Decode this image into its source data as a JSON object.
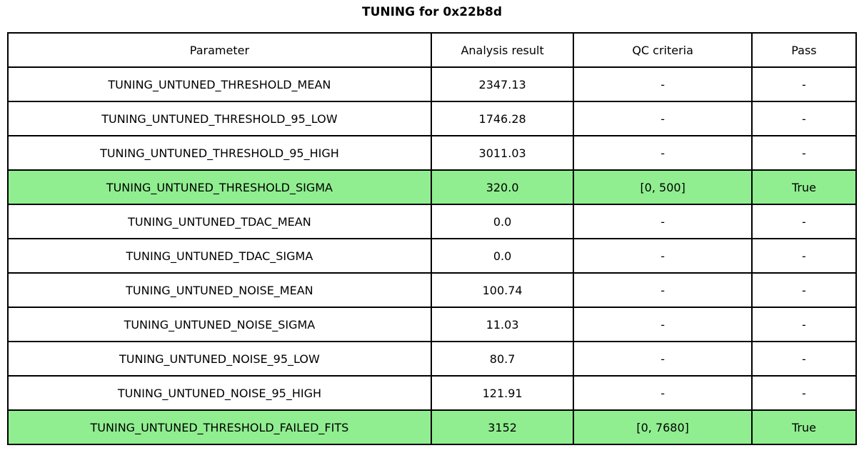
{
  "title": "TUNING for 0x22b8d",
  "colors": {
    "background": "#ffffff",
    "border": "#000000",
    "text": "#000000",
    "highlight_row": "#90EE90"
  },
  "table": {
    "columns": [
      "Parameter",
      "Analysis result",
      "QC criteria",
      "Pass"
    ],
    "rows": [
      {
        "cells": [
          "TUNING_UNTUNED_THRESHOLD_MEAN",
          "2347.13",
          "-",
          "-"
        ],
        "highlight": false
      },
      {
        "cells": [
          "TUNING_UNTUNED_THRESHOLD_95_LOW",
          "1746.28",
          "-",
          "-"
        ],
        "highlight": false
      },
      {
        "cells": [
          "TUNING_UNTUNED_THRESHOLD_95_HIGH",
          "3011.03",
          "-",
          "-"
        ],
        "highlight": false
      },
      {
        "cells": [
          "TUNING_UNTUNED_THRESHOLD_SIGMA",
          "320.0",
          "[0, 500]",
          "True"
        ],
        "highlight": true
      },
      {
        "cells": [
          "TUNING_UNTUNED_TDAC_MEAN",
          "0.0",
          "-",
          "-"
        ],
        "highlight": false
      },
      {
        "cells": [
          "TUNING_UNTUNED_TDAC_SIGMA",
          "0.0",
          "-",
          "-"
        ],
        "highlight": false
      },
      {
        "cells": [
          "TUNING_UNTUNED_NOISE_MEAN",
          "100.74",
          "-",
          "-"
        ],
        "highlight": false
      },
      {
        "cells": [
          "TUNING_UNTUNED_NOISE_SIGMA",
          "11.03",
          "-",
          "-"
        ],
        "highlight": false
      },
      {
        "cells": [
          "TUNING_UNTUNED_NOISE_95_LOW",
          "80.7",
          "-",
          "-"
        ],
        "highlight": false
      },
      {
        "cells": [
          "TUNING_UNTUNED_NOISE_95_HIGH",
          "121.91",
          "-",
          "-"
        ],
        "highlight": false
      },
      {
        "cells": [
          "TUNING_UNTUNED_THRESHOLD_FAILED_FITS",
          "3152",
          "[0, 7680]",
          "True"
        ],
        "highlight": true
      }
    ]
  },
  "chart_data": {
    "type": "table",
    "title": "TUNING for 0x22b8d",
    "columns": [
      "Parameter",
      "Analysis result",
      "QC criteria",
      "Pass"
    ],
    "rows": [
      [
        "TUNING_UNTUNED_THRESHOLD_MEAN",
        "2347.13",
        "-",
        "-"
      ],
      [
        "TUNING_UNTUNED_THRESHOLD_95_LOW",
        "1746.28",
        "-",
        "-"
      ],
      [
        "TUNING_UNTUNED_THRESHOLD_95_HIGH",
        "3011.03",
        "-",
        "-"
      ],
      [
        "TUNING_UNTUNED_THRESHOLD_SIGMA",
        "320.0",
        "[0, 500]",
        "True"
      ],
      [
        "TUNING_UNTUNED_TDAC_MEAN",
        "0.0",
        "-",
        "-"
      ],
      [
        "TUNING_UNTUNED_TDAC_SIGMA",
        "0.0",
        "-",
        "-"
      ],
      [
        "TUNING_UNTUNED_NOISE_MEAN",
        "100.74",
        "-",
        "-"
      ],
      [
        "TUNING_UNTUNED_NOISE_SIGMA",
        "11.03",
        "-",
        "-"
      ],
      [
        "TUNING_UNTUNED_NOISE_95_LOW",
        "80.7",
        "-",
        "-"
      ],
      [
        "TUNING_UNTUNED_NOISE_95_HIGH",
        "121.91",
        "-",
        "-"
      ],
      [
        "TUNING_UNTUNED_THRESHOLD_FAILED_FITS",
        "3152",
        "[0, 7680]",
        "True"
      ]
    ],
    "highlighted_row_indices": [
      3,
      10
    ],
    "highlight_color": "#90EE90"
  }
}
